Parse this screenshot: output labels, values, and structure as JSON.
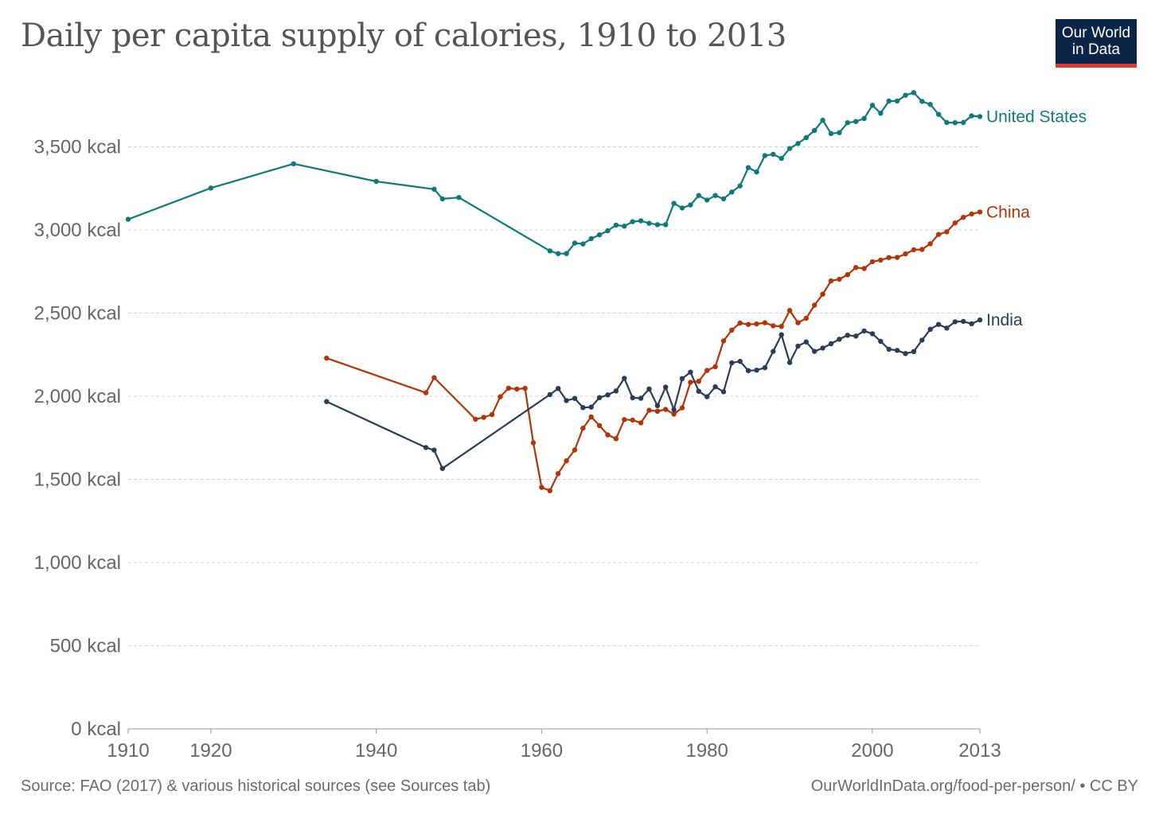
{
  "chart_data": {
    "type": "line",
    "title": "Daily per capita supply of calories, 1910 to 2013",
    "ylim": [
      0,
      3800
    ],
    "xlim": [
      1910,
      2013
    ],
    "y_ticks": [
      {
        "value": 0,
        "label": "0 kcal"
      },
      {
        "value": 500,
        "label": "500 kcal"
      },
      {
        "value": 1000,
        "label": "1,000 kcal"
      },
      {
        "value": 1500,
        "label": "1,500 kcal"
      },
      {
        "value": 2000,
        "label": "2,000 kcal"
      },
      {
        "value": 2500,
        "label": "2,500 kcal"
      },
      {
        "value": 3000,
        "label": "3,000 kcal"
      },
      {
        "value": 3500,
        "label": "3,500 kcal"
      }
    ],
    "x_ticks": [
      {
        "value": 1910,
        "label": "1910"
      },
      {
        "value": 1920,
        "label": "1920"
      },
      {
        "value": 1940,
        "label": "1940"
      },
      {
        "value": 1960,
        "label": "1960"
      },
      {
        "value": 1980,
        "label": "1980"
      },
      {
        "value": 2000,
        "label": "2000"
      },
      {
        "value": 2013,
        "label": "2013"
      }
    ],
    "grid": "horizontal dashed",
    "legend": "inline labels at line ends",
    "series": [
      {
        "name": "United States",
        "color": "#0d7a78",
        "points": [
          [
            1910,
            3064
          ],
          [
            1920,
            3252
          ],
          [
            1930,
            3398
          ],
          [
            1940,
            3292
          ],
          [
            1947,
            3245
          ],
          [
            1948,
            3187
          ],
          [
            1950,
            3195
          ],
          [
            1961,
            2874
          ],
          [
            1962,
            2858
          ],
          [
            1963,
            2858
          ],
          [
            1964,
            2921
          ],
          [
            1965,
            2916
          ],
          [
            1966,
            2948
          ],
          [
            1967,
            2971
          ],
          [
            1968,
            2995
          ],
          [
            1969,
            3029
          ],
          [
            1970,
            3023
          ],
          [
            1971,
            3050
          ],
          [
            1972,
            3055
          ],
          [
            1973,
            3040
          ],
          [
            1974,
            3032
          ],
          [
            1975,
            3032
          ],
          [
            1976,
            3160
          ],
          [
            1977,
            3132
          ],
          [
            1978,
            3150
          ],
          [
            1979,
            3207
          ],
          [
            1980,
            3180
          ],
          [
            1981,
            3207
          ],
          [
            1982,
            3187
          ],
          [
            1983,
            3228
          ],
          [
            1984,
            3265
          ],
          [
            1985,
            3375
          ],
          [
            1986,
            3349
          ],
          [
            1987,
            3447
          ],
          [
            1988,
            3455
          ],
          [
            1989,
            3430
          ],
          [
            1990,
            3490
          ],
          [
            1991,
            3520
          ],
          [
            1992,
            3555
          ],
          [
            1993,
            3598
          ],
          [
            1994,
            3660
          ],
          [
            1995,
            3580
          ],
          [
            1996,
            3585
          ],
          [
            1997,
            3645
          ],
          [
            1998,
            3652
          ],
          [
            1999,
            3670
          ],
          [
            2000,
            3750
          ],
          [
            2001,
            3702
          ],
          [
            2002,
            3775
          ],
          [
            2003,
            3775
          ],
          [
            2004,
            3810
          ],
          [
            2005,
            3826
          ],
          [
            2006,
            3773
          ],
          [
            2007,
            3755
          ],
          [
            2008,
            3695
          ],
          [
            2009,
            3646
          ],
          [
            2010,
            3645
          ],
          [
            2011,
            3646
          ],
          [
            2012,
            3686
          ],
          [
            2013,
            3682
          ]
        ]
      },
      {
        "name": "China",
        "color": "#b13507",
        "points": [
          [
            1934,
            2229
          ],
          [
            1946,
            2021
          ],
          [
            1947,
            2112
          ],
          [
            1952,
            1862
          ],
          [
            1953,
            1873
          ],
          [
            1954,
            1890
          ],
          [
            1955,
            1997
          ],
          [
            1956,
            2049
          ],
          [
            1957,
            2043
          ],
          [
            1958,
            2048
          ],
          [
            1959,
            1720
          ],
          [
            1960,
            1452
          ],
          [
            1961,
            1432
          ],
          [
            1962,
            1535
          ],
          [
            1963,
            1612
          ],
          [
            1964,
            1677
          ],
          [
            1965,
            1808
          ],
          [
            1966,
            1876
          ],
          [
            1967,
            1824
          ],
          [
            1968,
            1768
          ],
          [
            1969,
            1745
          ],
          [
            1970,
            1860
          ],
          [
            1971,
            1857
          ],
          [
            1972,
            1840
          ],
          [
            1973,
            1916
          ],
          [
            1974,
            1910
          ],
          [
            1975,
            1921
          ],
          [
            1976,
            1893
          ],
          [
            1977,
            1930
          ],
          [
            1978,
            2084
          ],
          [
            1979,
            2090
          ],
          [
            1980,
            2155
          ],
          [
            1981,
            2178
          ],
          [
            1982,
            2333
          ],
          [
            1983,
            2398
          ],
          [
            1984,
            2440
          ],
          [
            1985,
            2432
          ],
          [
            1986,
            2435
          ],
          [
            1987,
            2442
          ],
          [
            1988,
            2424
          ],
          [
            1989,
            2420
          ],
          [
            1990,
            2516
          ],
          [
            1991,
            2442
          ],
          [
            1992,
            2469
          ],
          [
            1993,
            2548
          ],
          [
            1994,
            2614
          ],
          [
            1995,
            2694
          ],
          [
            1996,
            2704
          ],
          [
            1997,
            2731
          ],
          [
            1998,
            2774
          ],
          [
            1999,
            2768
          ],
          [
            2000,
            2809
          ],
          [
            2001,
            2819
          ],
          [
            2002,
            2834
          ],
          [
            2003,
            2835
          ],
          [
            2004,
            2856
          ],
          [
            2005,
            2881
          ],
          [
            2006,
            2883
          ],
          [
            2007,
            2917
          ],
          [
            2008,
            2973
          ],
          [
            2009,
            2989
          ],
          [
            2010,
            3042
          ],
          [
            2011,
            3076
          ],
          [
            2012,
            3096
          ],
          [
            2013,
            3108
          ]
        ]
      },
      {
        "name": "India",
        "color": "#2d3b55",
        "points": [
          [
            1934,
            1968
          ],
          [
            1946,
            1692
          ],
          [
            1947,
            1676
          ],
          [
            1948,
            1566
          ],
          [
            1961,
            2010
          ],
          [
            1962,
            2047
          ],
          [
            1963,
            1974
          ],
          [
            1964,
            1987
          ],
          [
            1965,
            1932
          ],
          [
            1966,
            1935
          ],
          [
            1967,
            1992
          ],
          [
            1968,
            2008
          ],
          [
            1969,
            2032
          ],
          [
            1970,
            2108
          ],
          [
            1971,
            1991
          ],
          [
            1972,
            1988
          ],
          [
            1973,
            2044
          ],
          [
            1974,
            1943
          ],
          [
            1975,
            2055
          ],
          [
            1976,
            1919
          ],
          [
            1977,
            2106
          ],
          [
            1978,
            2145
          ],
          [
            1979,
            2030
          ],
          [
            1980,
            1997
          ],
          [
            1981,
            2057
          ],
          [
            1982,
            2027
          ],
          [
            1983,
            2201
          ],
          [
            1984,
            2210
          ],
          [
            1985,
            2154
          ],
          [
            1986,
            2157
          ],
          [
            1987,
            2172
          ],
          [
            1988,
            2270
          ],
          [
            1989,
            2370
          ],
          [
            1990,
            2203
          ],
          [
            1991,
            2302
          ],
          [
            1992,
            2327
          ],
          [
            1993,
            2270
          ],
          [
            1994,
            2290
          ],
          [
            1995,
            2316
          ],
          [
            1996,
            2343
          ],
          [
            1997,
            2367
          ],
          [
            1998,
            2362
          ],
          [
            1999,
            2393
          ],
          [
            2000,
            2376
          ],
          [
            2001,
            2330
          ],
          [
            2002,
            2283
          ],
          [
            2003,
            2276
          ],
          [
            2004,
            2257
          ],
          [
            2005,
            2269
          ],
          [
            2006,
            2338
          ],
          [
            2007,
            2403
          ],
          [
            2008,
            2432
          ],
          [
            2009,
            2410
          ],
          [
            2010,
            2448
          ],
          [
            2011,
            2450
          ],
          [
            2012,
            2436
          ],
          [
            2013,
            2459
          ]
        ]
      }
    ]
  },
  "header": {
    "title": "Daily per capita supply of calories, 1910 to 2013",
    "logo_line1": "Our World",
    "logo_line2": "in Data"
  },
  "footer": {
    "source": "Source: FAO (2017) & various historical sources (see Sources tab)",
    "url": "OurWorldInData.org/food-per-person/ • CC BY"
  }
}
